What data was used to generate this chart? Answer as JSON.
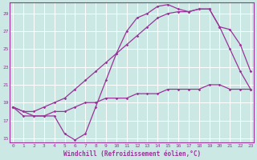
{
  "xlabel": "Windchill (Refroidissement éolien,°C)",
  "bg_color": "#cce8e4",
  "line_color": "#993399",
  "grid_color": "#ffffff",
  "ylim": [
    14.5,
    30.2
  ],
  "xlim": [
    -0.3,
    23.3
  ],
  "yticks": [
    15,
    17,
    19,
    21,
    23,
    25,
    27,
    29
  ],
  "xticks": [
    0,
    1,
    2,
    3,
    4,
    5,
    6,
    7,
    8,
    9,
    10,
    11,
    12,
    13,
    14,
    15,
    16,
    17,
    18,
    19,
    20,
    21,
    22,
    23
  ],
  "line1_x": [
    0,
    1,
    2,
    3,
    4,
    5,
    6,
    7,
    8,
    9,
    10,
    11,
    12,
    13,
    14,
    15,
    16,
    17,
    18,
    19,
    20,
    21,
    22,
    23
  ],
  "line1_y": [
    18.5,
    18.0,
    17.5,
    17.5,
    18.0,
    18.0,
    18.5,
    19.0,
    19.0,
    19.5,
    19.5,
    19.5,
    20.0,
    20.0,
    20.0,
    20.5,
    20.5,
    20.5,
    20.5,
    21.0,
    21.0,
    20.5,
    20.5,
    20.5
  ],
  "line2_x": [
    0,
    1,
    2,
    3,
    4,
    5,
    6,
    7,
    8,
    9,
    10,
    11,
    12,
    13,
    14,
    15,
    16,
    17,
    18,
    19,
    20,
    21,
    22,
    23
  ],
  "line2_y": [
    18.5,
    17.5,
    17.5,
    17.5,
    17.5,
    15.5,
    14.8,
    15.5,
    18.5,
    21.5,
    24.5,
    27.0,
    28.5,
    29.0,
    29.8,
    30.0,
    29.5,
    29.2,
    29.5,
    29.5,
    27.5,
    25.0,
    22.5,
    20.5
  ],
  "line3_x": [
    0,
    1,
    2,
    3,
    4,
    5,
    6,
    7,
    8,
    9,
    10,
    11,
    12,
    13,
    14,
    15,
    16,
    17,
    18,
    19,
    20,
    21,
    22,
    23
  ],
  "line3_y": [
    18.5,
    18.0,
    18.0,
    18.5,
    19.0,
    19.5,
    20.5,
    21.5,
    22.5,
    23.5,
    24.5,
    25.5,
    26.5,
    27.5,
    28.5,
    29.0,
    29.2,
    29.2,
    29.5,
    29.5,
    27.5,
    27.2,
    25.5,
    22.5
  ]
}
